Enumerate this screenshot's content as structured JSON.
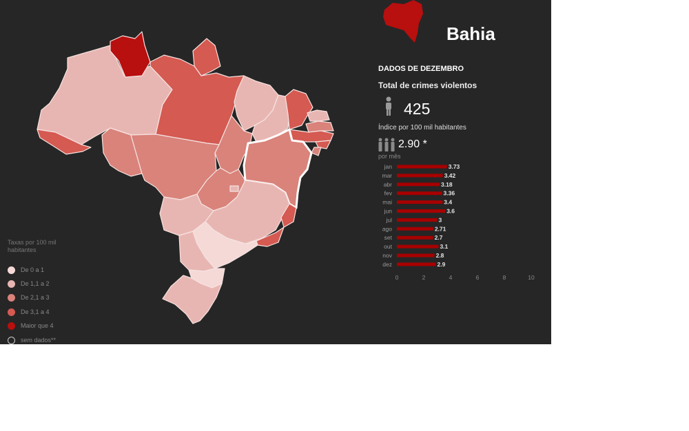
{
  "panel": {
    "state_name": "Bahia",
    "month_title": "DADOS DE DEZEMBRO",
    "total_label": "Total de crimes violentos",
    "total_value": "425",
    "index_label": "Índice por 100 mil habitantes",
    "index_value": "2.90 *",
    "per_month_label": "por mês"
  },
  "legend": {
    "title": "Taxas por 100 mil habitantes",
    "items": [
      {
        "label": "De 0 a 1",
        "color": "#f4d9d7"
      },
      {
        "label": "De 1,1 a 2",
        "color": "#e8b6b2"
      },
      {
        "label": "De 2,1 a 3",
        "color": "#d9837b"
      },
      {
        "label": "De 3,1 a 4",
        "color": "#d45a52"
      },
      {
        "label": "Maior que 4",
        "color": "#b80f0f"
      },
      {
        "label": "sem dados**",
        "color": "none"
      }
    ]
  },
  "colors": {
    "background": "#262626",
    "bar": "#a80000",
    "highlight_outline": "#ffffff"
  },
  "icons": [
    "bahia-shape-icon",
    "person-icon",
    "people-icon"
  ],
  "chart_data": {
    "type": "bar",
    "orientation": "horizontal",
    "categories": [
      "jan",
      "mar",
      "abr",
      "fev",
      "mai",
      "jun",
      "jul",
      "ago",
      "set",
      "out",
      "nov",
      "dez"
    ],
    "values": [
      3.73,
      3.42,
      3.18,
      3.36,
      3.4,
      3.6,
      3,
      2.71,
      2.7,
      3.1,
      2.8,
      2.9
    ],
    "value_labels": [
      "3.73",
      "3.42",
      "3.18",
      "3.36",
      "3.4",
      "3.6",
      "3",
      "2.71",
      "2.7",
      "3.1",
      "2.8",
      "2.9"
    ],
    "x_ticks": [
      "0",
      "2",
      "4",
      "6",
      "8",
      "10"
    ],
    "xlim": [
      0,
      10
    ],
    "grid": false,
    "legend": "none",
    "title": ""
  }
}
